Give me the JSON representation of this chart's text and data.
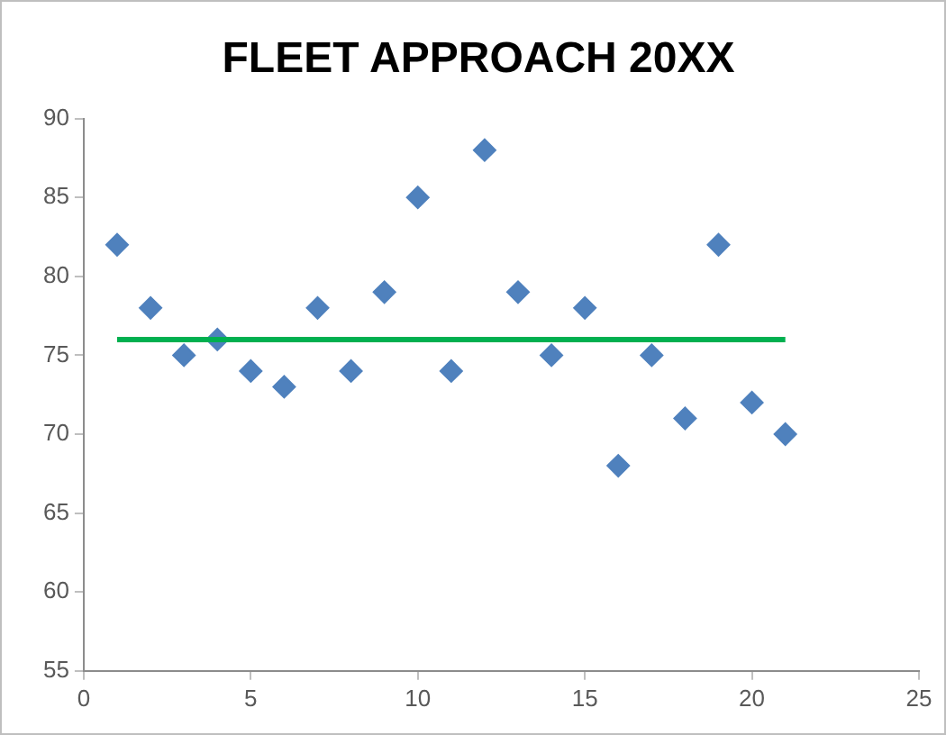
{
  "chart_data": {
    "type": "scatter",
    "title": "FLEET APPROACH 20XX",
    "x": [
      1,
      2,
      3,
      4,
      5,
      6,
      7,
      8,
      9,
      10,
      11,
      12,
      13,
      14,
      15,
      16,
      17,
      18,
      19,
      20,
      21
    ],
    "series": [
      {
        "type": "scatter",
        "color": "#4f81bd",
        "marker": "diamond",
        "values": [
          82,
          78,
          75,
          76,
          74,
          73,
          78,
          74,
          79,
          85,
          74,
          88,
          79,
          75,
          78,
          68,
          75,
          71,
          82,
          72,
          70
        ]
      },
      {
        "type": "line",
        "color": "#00b050",
        "marker": "none",
        "x": [
          1,
          21
        ],
        "values": [
          76,
          76
        ]
      }
    ],
    "xlim": [
      0,
      25
    ],
    "xticks": [
      0,
      5,
      10,
      15,
      20,
      25
    ],
    "ylim": [
      55,
      90
    ],
    "yticks": [
      55,
      60,
      65,
      70,
      75,
      80,
      85,
      90
    ],
    "grid": false,
    "legend": false
  }
}
